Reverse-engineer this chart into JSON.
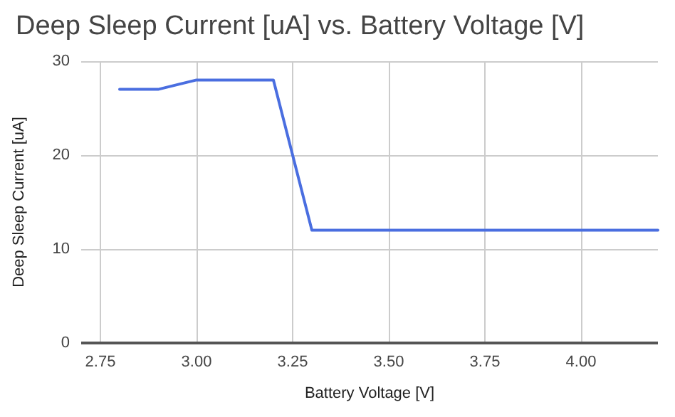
{
  "chart_data": {
    "type": "line",
    "title": "Deep Sleep Current [uA] vs. Battery Voltage [V]",
    "xlabel": "Battery Voltage [V]",
    "ylabel": "Deep Sleep Current [uA]",
    "x": [
      2.8,
      2.9,
      3.0,
      3.2,
      3.3,
      4.2
    ],
    "series": [
      {
        "color": "#4a6ee0",
        "values": [
          27,
          27,
          28,
          28,
          12,
          12
        ]
      }
    ],
    "xlim": [
      2.7,
      4.2
    ],
    "xticks": [
      {
        "value": 2.75,
        "label": "2.75"
      },
      {
        "value": 3,
        "label": "3.00"
      },
      {
        "value": 3.25,
        "label": "3.25"
      },
      {
        "value": 3.5,
        "label": "3.50"
      },
      {
        "value": 3.75,
        "label": "3.75"
      },
      {
        "value": 4,
        "label": "4.00"
      }
    ],
    "ylim": [
      0,
      30
    ],
    "yticks": [
      0,
      10,
      20,
      30
    ],
    "grid": true,
    "marker": "none",
    "line_style": "solid"
  }
}
